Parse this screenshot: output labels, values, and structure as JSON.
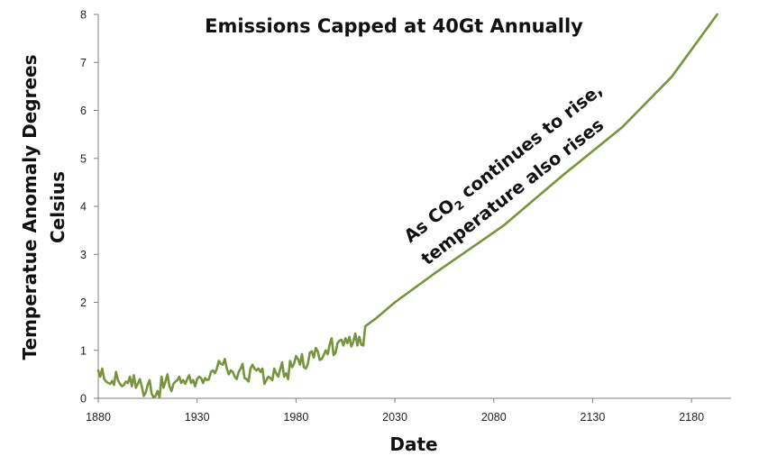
{
  "chart_data": {
    "type": "line",
    "title": "Emissions Capped at 40Gt Annually",
    "xlabel": "Date",
    "ylabel_line1": "Temperatue Anomaly Degrees",
    "ylabel_line2": "Celsius",
    "xlim": [
      1880,
      2200
    ],
    "ylim": [
      0,
      8
    ],
    "xticks": [
      1880,
      1930,
      1980,
      2030,
      2080,
      2130,
      2180
    ],
    "yticks": [
      0,
      1,
      2,
      3,
      4,
      5,
      6,
      7,
      8
    ],
    "grid": false,
    "series_color": "#77933C",
    "annotation": {
      "line1_pre": "As CO",
      "line1_sub": "2",
      "line1_post": " continues to rise,",
      "line2": "temperature also rises"
    },
    "x": [
      1880,
      1881,
      1882,
      1883,
      1884,
      1885,
      1886,
      1887,
      1888,
      1889,
      1890,
      1891,
      1892,
      1893,
      1894,
      1895,
      1896,
      1897,
      1898,
      1899,
      1900,
      1901,
      1902,
      1903,
      1904,
      1905,
      1906,
      1907,
      1908,
      1909,
      1910,
      1911,
      1912,
      1913,
      1914,
      1915,
      1916,
      1917,
      1918,
      1919,
      1920,
      1921,
      1922,
      1923,
      1924,
      1925,
      1926,
      1927,
      1928,
      1929,
      1930,
      1931,
      1932,
      1933,
      1934,
      1935,
      1936,
      1937,
      1938,
      1939,
      1940,
      1941,
      1942,
      1943,
      1944,
      1945,
      1946,
      1947,
      1948,
      1949,
      1950,
      1951,
      1952,
      1953,
      1954,
      1955,
      1956,
      1957,
      1958,
      1959,
      1960,
      1961,
      1962,
      1963,
      1964,
      1965,
      1966,
      1967,
      1968,
      1969,
      1970,
      1971,
      1972,
      1973,
      1974,
      1975,
      1976,
      1977,
      1978,
      1979,
      1980,
      1981,
      1982,
      1983,
      1984,
      1985,
      1986,
      1987,
      1988,
      1989,
      1990,
      1991,
      1992,
      1993,
      1994,
      1995,
      1996,
      1997,
      1998,
      1999,
      2000,
      2001,
      2002,
      2003,
      2004,
      2005,
      2006,
      2007,
      2008,
      2009,
      2010,
      2011,
      2012,
      2013,
      2014,
      2015,
      2020,
      2030,
      2050,
      2085,
      2115,
      2145,
      2170,
      2193
    ],
    "y": [
      0.58,
      0.45,
      0.62,
      0.4,
      0.35,
      0.32,
      0.3,
      0.36,
      0.28,
      0.55,
      0.38,
      0.3,
      0.25,
      0.28,
      0.35,
      0.32,
      0.45,
      0.25,
      0.48,
      0.22,
      0.3,
      0.4,
      0.25,
      0.05,
      0.12,
      0.28,
      0.38,
      0.1,
      0.02,
      0.05,
      0.15,
      0.02,
      0.45,
      0.22,
      0.35,
      0.5,
      0.25,
      0.15,
      0.3,
      0.35,
      0.38,
      0.45,
      0.32,
      0.38,
      0.3,
      0.4,
      0.48,
      0.32,
      0.38,
      0.25,
      0.4,
      0.45,
      0.42,
      0.32,
      0.42,
      0.38,
      0.4,
      0.55,
      0.58,
      0.52,
      0.62,
      0.78,
      0.72,
      0.7,
      0.82,
      0.62,
      0.5,
      0.58,
      0.55,
      0.45,
      0.4,
      0.55,
      0.62,
      0.72,
      0.42,
      0.4,
      0.35,
      0.62,
      0.7,
      0.62,
      0.58,
      0.62,
      0.55,
      0.62,
      0.3,
      0.38,
      0.45,
      0.42,
      0.38,
      0.62,
      0.52,
      0.45,
      0.6,
      0.75,
      0.45,
      0.52,
      0.4,
      0.78,
      0.65,
      0.72,
      0.88,
      0.82,
      0.7,
      0.92,
      0.65,
      0.62,
      0.72,
      0.95,
      0.98,
      0.85,
      1.05,
      0.98,
      0.8,
      0.82,
      0.9,
      1.0,
      0.92,
      1.12,
      1.25,
      0.9,
      0.95,
      1.15,
      1.2,
      1.22,
      1.1,
      1.25,
      1.15,
      1.28,
      1.08,
      1.18,
      1.35,
      1.1,
      1.28,
      1.12,
      1.1,
      1.5,
      1.65,
      2.0,
      2.6,
      3.6,
      4.65,
      5.65,
      6.7,
      8.0
    ]
  }
}
